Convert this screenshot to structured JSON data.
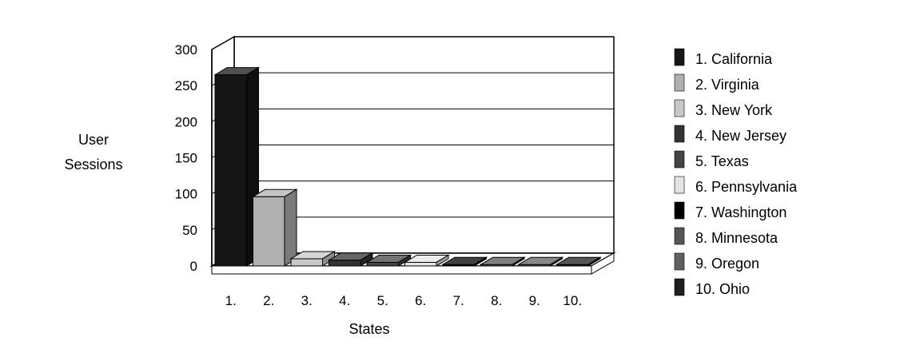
{
  "chart_data": {
    "type": "bar",
    "categories": [
      "1.",
      "2.",
      "3.",
      "4.",
      "5.",
      "6.",
      "7.",
      "8.",
      "9.",
      "10."
    ],
    "values": [
      265,
      96,
      10,
      8,
      5,
      5,
      2,
      2,
      2,
      2
    ],
    "xlabel": "States",
    "ylabel": [
      "User",
      "Sessions"
    ],
    "ylim": [
      0,
      300
    ],
    "yticks": [
      0,
      50,
      100,
      150,
      200,
      250,
      300
    ],
    "grid": true,
    "three_d": true,
    "legend_position": "right",
    "legend": [
      {
        "label": "1. California",
        "color": "#151515"
      },
      {
        "label": "2. Virginia",
        "color": "#b0b0b0"
      },
      {
        "label": "3. New York",
        "color": "#c8c8c8"
      },
      {
        "label": "4. New Jersey",
        "color": "#333333"
      },
      {
        "label": "5. Texas",
        "color": "#444444"
      },
      {
        "label": "6. Pennsylvania",
        "color": "#e4e4e4"
      },
      {
        "label": "7. Washington",
        "color": "#000000"
      },
      {
        "label": "8. Minnesota",
        "color": "#555555"
      },
      {
        "label": "9. Oregon",
        "color": "#606060"
      },
      {
        "label": "10. Ohio",
        "color": "#1e1e1e"
      }
    ]
  }
}
